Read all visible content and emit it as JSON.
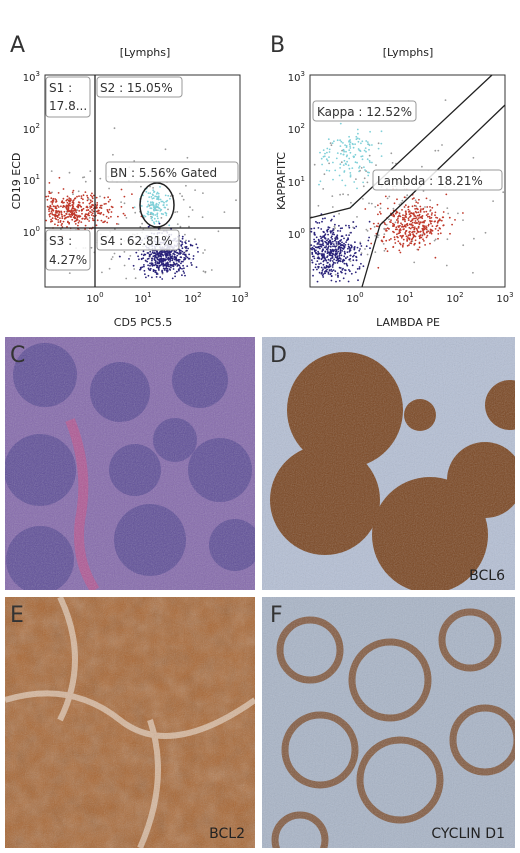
{
  "panels": [
    {
      "letter": "A",
      "title": "[Lymphs]",
      "y_label": "CD19 ECD",
      "x_label": "CD5 PC5.5",
      "y_ticks": [
        {
          "base": "10",
          "exp": "3"
        },
        {
          "base": "10",
          "exp": "2"
        },
        {
          "base": "10",
          "exp": "1"
        },
        {
          "base": "10",
          "exp": "0"
        }
      ],
      "x_ticks": [
        {
          "base": "10",
          "exp": "0"
        },
        {
          "base": "10",
          "exp": "1"
        },
        {
          "base": "10",
          "exp": "2"
        },
        {
          "base": "10",
          "exp": "3"
        }
      ],
      "gates": [
        [
          "S1 :",
          "17.8..."
        ],
        [
          "S2 : 15.05%"
        ],
        [
          "BN : 5.56% Gated"
        ],
        [
          "S3 :",
          "4.27%"
        ],
        [
          "S4 : 62.81%"
        ]
      ]
    },
    {
      "letter": "B",
      "title": "[Lymphs]",
      "y_label": "KAPPAFITC",
      "x_label": "LAMBDA PE",
      "y_ticks": [
        {
          "base": "10",
          "exp": "3"
        },
        {
          "base": "10",
          "exp": "2"
        },
        {
          "base": "10",
          "exp": "1"
        },
        {
          "base": "10",
          "exp": "0"
        }
      ],
      "x_ticks": [
        {
          "base": "10",
          "exp": "0"
        },
        {
          "base": "10",
          "exp": "1"
        },
        {
          "base": "10",
          "exp": "2"
        },
        {
          "base": "10",
          "exp": "3"
        }
      ],
      "gates": [
        [
          "Kappa : 12.52%"
        ],
        [
          "Lambda : 18.21%"
        ]
      ]
    },
    {
      "letter": "C"
    },
    {
      "letter": "D",
      "stain": "BCL6"
    },
    {
      "letter": "E",
      "stain": "BCL2"
    },
    {
      "letter": "F",
      "stain": "CYCLIN D1"
    }
  ]
}
